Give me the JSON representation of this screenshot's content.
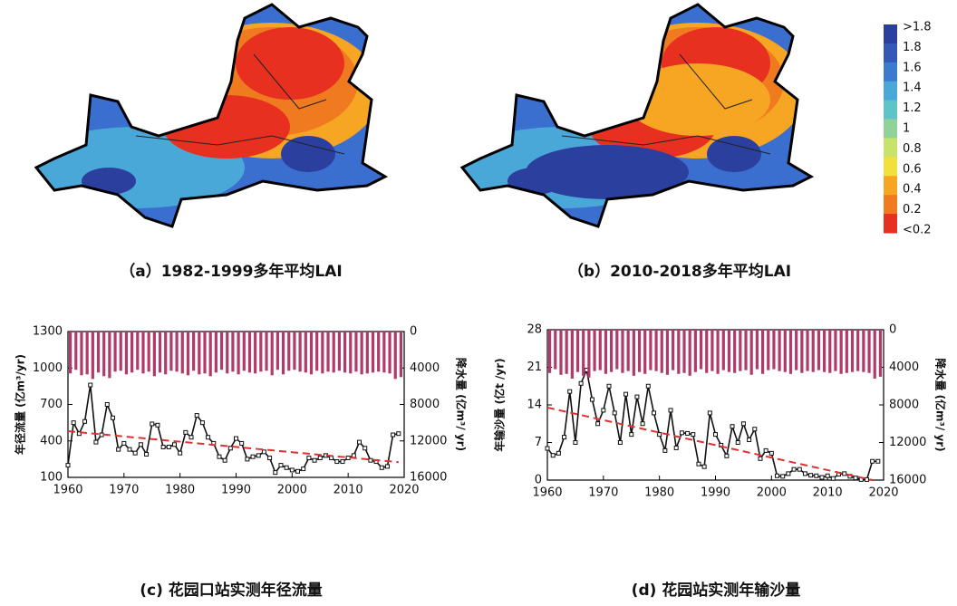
{
  "maps": [
    {
      "caption": "（a）1982-1999多年平均LAI"
    },
    {
      "caption": "（b）2010-2018多年平均LAI"
    }
  ],
  "colorbar": {
    "labels": [
      ">1.8",
      "1.8",
      "1.6",
      "1.4",
      "1.2",
      "1",
      "0.8",
      "0.6",
      "0.4",
      "0.2",
      "<0.2"
    ],
    "colors": [
      "#2b3f9e",
      "#3558b8",
      "#3a7bd0",
      "#4aa8d8",
      "#5fc4c8",
      "#8fd39a",
      "#c9e26a",
      "#f2e03c",
      "#f6a623",
      "#f07a1f",
      "#e83020"
    ]
  },
  "chart_data": [
    {
      "type": "line",
      "caption": "(c) 花园口站实测年径流量",
      "ylabel": "年径流量 (亿m³/yr)",
      "y2label": "降水量 (亿m³/ yr)",
      "xlim": [
        1960,
        2020
      ],
      "xticks": [
        1960,
        1970,
        1980,
        1990,
        2000,
        2010,
        2020
      ],
      "ylim": [
        100,
        1300
      ],
      "yticks": [
        100,
        400,
        700,
        1000,
        1300
      ],
      "y2lim": [
        16000,
        0
      ],
      "y2ticks": [
        0,
        4000,
        8000,
        12000,
        16000
      ],
      "x": [
        1960,
        1961,
        1962,
        1963,
        1964,
        1965,
        1966,
        1967,
        1968,
        1969,
        1970,
        1971,
        1972,
        1973,
        1974,
        1975,
        1976,
        1977,
        1978,
        1979,
        1980,
        1981,
        1982,
        1983,
        1984,
        1985,
        1986,
        1987,
        1988,
        1989,
        1990,
        1991,
        1992,
        1993,
        1994,
        1995,
        1996,
        1997,
        1998,
        1999,
        2000,
        2001,
        2002,
        2003,
        2004,
        2005,
        2006,
        2007,
        2008,
        2009,
        2010,
        2011,
        2012,
        2013,
        2014,
        2015,
        2016,
        2017,
        2018,
        2019
      ],
      "series": [
        {
          "color": "#111111",
          "values": [
            200,
            550,
            460,
            560,
            860,
            390,
            450,
            700,
            590,
            330,
            380,
            330,
            300,
            370,
            290,
            540,
            530,
            350,
            350,
            370,
            300,
            470,
            430,
            610,
            550,
            430,
            380,
            270,
            240,
            340,
            420,
            380,
            250,
            270,
            280,
            310,
            260,
            140,
            200,
            180,
            160,
            150,
            170,
            260,
            240,
            260,
            280,
            260,
            230,
            230,
            260,
            280,
            390,
            340,
            240,
            230,
            180,
            190,
            450,
            460
          ]
        },
        {
          "axis": "y2",
          "color": "#b03a6a",
          "values": [
            4600,
            4200,
            4800,
            4700,
            5200,
            4500,
            4900,
            5100,
            4400,
            4300,
            4700,
            4500,
            4200,
            4600,
            4400,
            4900,
            4500,
            4700,
            4300,
            4400,
            4600,
            4800,
            4300,
            4700,
            4600,
            4900,
            4500,
            4200,
            4600,
            4400,
            4700,
            4300,
            4500,
            4600,
            4400,
            4300,
            4800,
            4200,
            4700,
            4300,
            4200,
            4400,
            4500,
            4700,
            4300,
            4600,
            4400,
            4500,
            4300,
            4500,
            4600,
            4400,
            4700,
            4600,
            4500,
            4400,
            4500,
            4600,
            5200,
            5000
          ]
        }
      ],
      "trend": {
        "x": [
          1960,
          2019
        ],
        "values": [
          480,
          225
        ],
        "color": "#e03030"
      }
    },
    {
      "type": "line",
      "caption": "(d) 花园站实测年输沙量",
      "ylabel": "年输沙量 (亿t /yr)",
      "y2label": "降水量 (亿m³/ yr)",
      "xlim": [
        1960,
        2020
      ],
      "xticks": [
        1960,
        1970,
        1980,
        1990,
        2000,
        2010,
        2020
      ],
      "ylim": [
        0,
        28
      ],
      "yticks": [
        0,
        7,
        14,
        21,
        28
      ],
      "y2lim": [
        16000,
        0
      ],
      "y2ticks": [
        0,
        4000,
        8000,
        12000,
        16000
      ],
      "x": [
        1960,
        1961,
        1962,
        1963,
        1964,
        1965,
        1966,
        1967,
        1968,
        1969,
        1970,
        1971,
        1972,
        1973,
        1974,
        1975,
        1976,
        1977,
        1978,
        1979,
        1980,
        1981,
        1982,
        1983,
        1984,
        1985,
        1986,
        1987,
        1988,
        1989,
        1990,
        1991,
        1992,
        1993,
        1994,
        1995,
        1996,
        1997,
        1998,
        1999,
        2000,
        2001,
        2002,
        2003,
        2004,
        2005,
        2006,
        2007,
        2008,
        2009,
        2010,
        2011,
        2012,
        2013,
        2014,
        2015,
        2016,
        2017,
        2018,
        2019
      ],
      "series": [
        {
          "color": "#111111",
          "values": [
            5.9,
            4.6,
            5,
            8,
            16.5,
            7,
            18,
            20.5,
            15,
            10.5,
            13,
            17.5,
            12.5,
            7,
            16,
            8.5,
            15.5,
            10.5,
            17.5,
            12.5,
            8.5,
            5.5,
            13,
            6,
            8.8,
            8.7,
            8.5,
            3,
            2.5,
            12.5,
            8.5,
            6.5,
            4.5,
            10,
            7,
            10.5,
            7.5,
            9.5,
            4,
            5.5,
            5,
            0.8,
            0.7,
            1.2,
            2,
            2,
            1.2,
            0.9,
            0.8,
            0.5,
            0.8,
            0.3,
            1.1,
            1.2,
            0.7,
            0.4,
            0.1,
            0.1,
            3.5,
            3.5
          ]
        },
        {
          "axis": "y2",
          "color": "#b03a6a",
          "values": [
            4600,
            4200,
            4800,
            4700,
            5200,
            4500,
            4900,
            5100,
            4400,
            4300,
            4700,
            4500,
            4200,
            4600,
            4400,
            4900,
            4500,
            4700,
            4300,
            4400,
            4600,
            4800,
            4300,
            4700,
            4600,
            4900,
            4500,
            4200,
            4600,
            4400,
            4700,
            4300,
            4500,
            4600,
            4400,
            4300,
            4800,
            4200,
            4700,
            4300,
            4200,
            4400,
            4500,
            4700,
            4300,
            4600,
            4400,
            4500,
            4300,
            4500,
            4600,
            4400,
            4700,
            4600,
            4500,
            4400,
            4500,
            4600,
            5200,
            5000
          ]
        }
      ],
      "trend": {
        "x": [
          1960,
          2018
        ],
        "values": [
          13.5,
          0
        ],
        "color": "#e03030"
      }
    }
  ]
}
